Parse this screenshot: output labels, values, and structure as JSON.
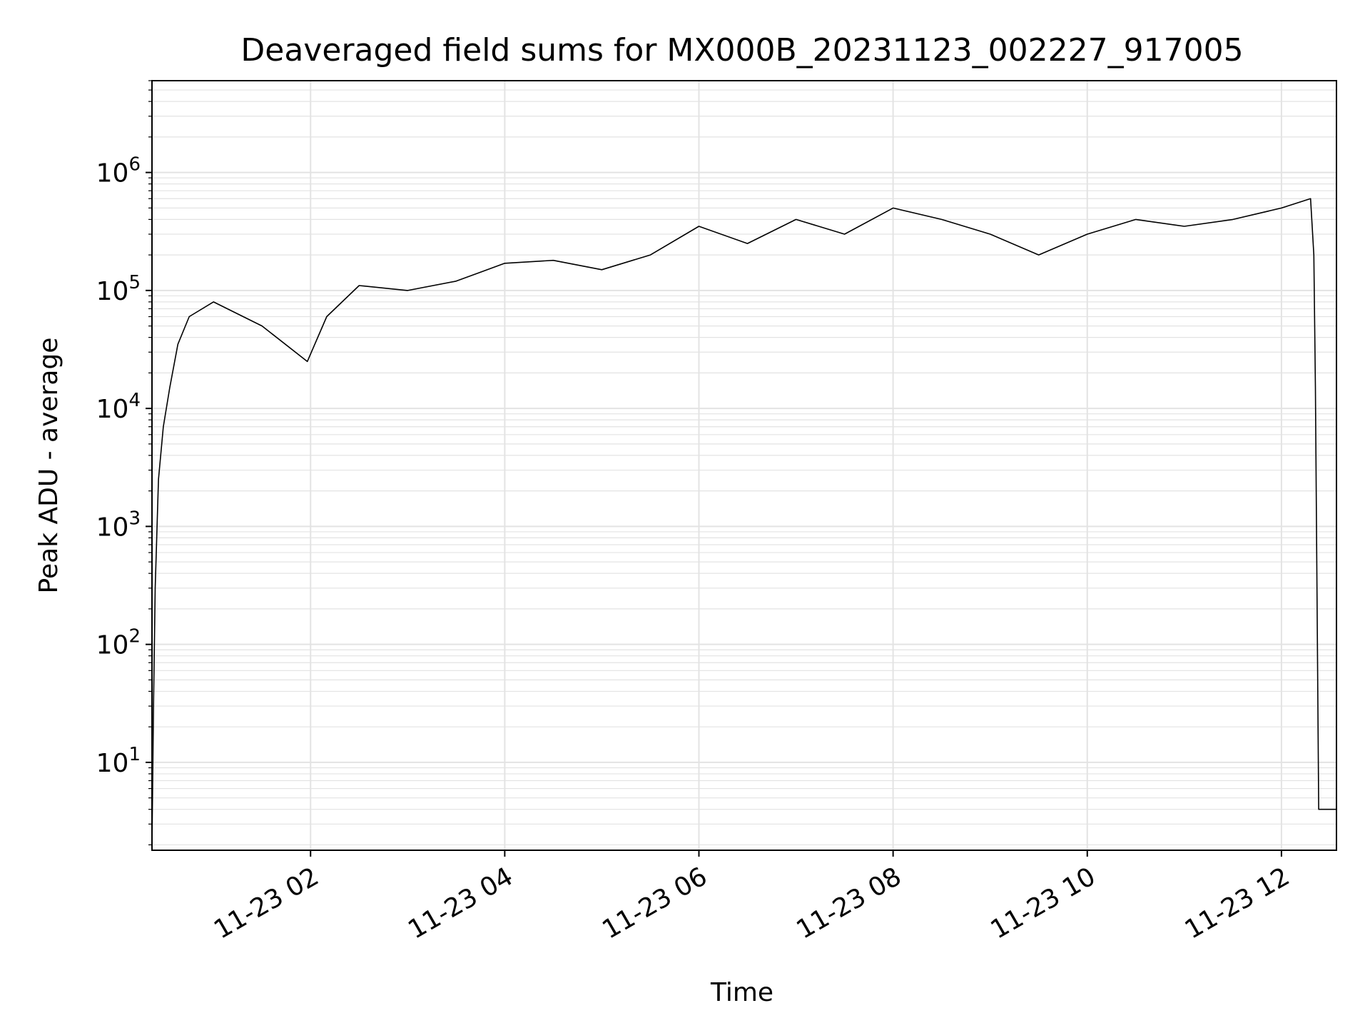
{
  "chart_data": {
    "type": "line",
    "title": "Deaveraged field sums for MX000B_20231123_002227_917005",
    "xlabel": "Time",
    "ylabel": "Peak ADU - average",
    "yscale": "log",
    "grid": true,
    "xlim": [
      "2023-11-23 00:22",
      "2023-11-23 12:34"
    ],
    "ylim": [
      1.8,
      6000000
    ],
    "x_ticks": [
      {
        "value": "2023-11-23 02:00",
        "label": "11-23 02"
      },
      {
        "value": "2023-11-23 04:00",
        "label": "11-23 04"
      },
      {
        "value": "2023-11-23 06:00",
        "label": "11-23 06"
      },
      {
        "value": "2023-11-23 08:00",
        "label": "11-23 08"
      },
      {
        "value": "2023-11-23 10:00",
        "label": "11-23 10"
      },
      {
        "value": "2023-11-23 12:00",
        "label": "11-23 12"
      }
    ],
    "y_ticks": [
      {
        "value": 10,
        "base": "10",
        "exp": "1"
      },
      {
        "value": 100,
        "base": "10",
        "exp": "2"
      },
      {
        "value": 1000,
        "base": "10",
        "exp": "3"
      },
      {
        "value": 10000,
        "base": "10",
        "exp": "4"
      },
      {
        "value": 100000,
        "base": "10",
        "exp": "5"
      },
      {
        "value": 1000000,
        "base": "10",
        "exp": "6"
      }
    ],
    "series": [
      {
        "color": "#000000",
        "points": [
          [
            "2023-11-23 00:22",
            2
          ],
          [
            "2023-11-23 00:23",
            35
          ],
          [
            "2023-11-23 00:24",
            300
          ],
          [
            "2023-11-23 00:26",
            2500
          ],
          [
            "2023-11-23 00:29",
            7000
          ],
          [
            "2023-11-23 00:33",
            15000
          ],
          [
            "2023-11-23 00:38",
            35000
          ],
          [
            "2023-11-23 00:45",
            60000
          ],
          [
            "2023-11-23 01:00",
            80000
          ],
          [
            "2023-11-23 01:30",
            50000
          ],
          [
            "2023-11-23 01:58",
            25000
          ],
          [
            "2023-11-23 02:10",
            60000
          ],
          [
            "2023-11-23 02:30",
            110000
          ],
          [
            "2023-11-23 03:00",
            100000
          ],
          [
            "2023-11-23 03:30",
            120000
          ],
          [
            "2023-11-23 04:00",
            170000
          ],
          [
            "2023-11-23 04:30",
            180000
          ],
          [
            "2023-11-23 05:00",
            150000
          ],
          [
            "2023-11-23 05:30",
            200000
          ],
          [
            "2023-11-23 06:00",
            350000
          ],
          [
            "2023-11-23 06:30",
            250000
          ],
          [
            "2023-11-23 07:00",
            400000
          ],
          [
            "2023-11-23 07:30",
            300000
          ],
          [
            "2023-11-23 08:00",
            500000
          ],
          [
            "2023-11-23 08:30",
            400000
          ],
          [
            "2023-11-23 09:00",
            300000
          ],
          [
            "2023-11-23 09:30",
            200000
          ],
          [
            "2023-11-23 10:00",
            300000
          ],
          [
            "2023-11-23 10:30",
            400000
          ],
          [
            "2023-11-23 11:00",
            350000
          ],
          [
            "2023-11-23 11:30",
            400000
          ],
          [
            "2023-11-23 12:00",
            500000
          ],
          [
            "2023-11-23 12:18",
            600000
          ],
          [
            "2023-11-23 12:20",
            200000
          ],
          [
            "2023-11-23 12:21",
            15000
          ],
          [
            "2023-11-23 12:23",
            4
          ],
          [
            "2023-11-23 12:34",
            4
          ]
        ]
      }
    ]
  }
}
